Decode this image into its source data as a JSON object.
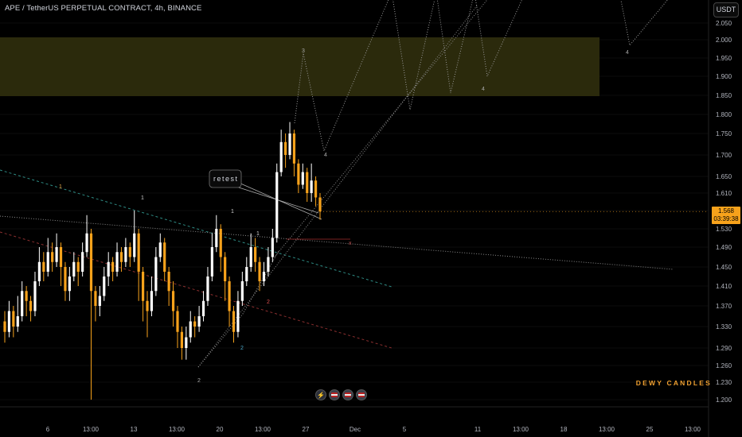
{
  "header": {
    "title": "APE / TetherUS PERPETUAL CONTRACT, 4h, BINANCE"
  },
  "currency_button": "USDT",
  "last_price": {
    "price": "1.568",
    "countdown": "03:39:38",
    "color": "#f7a21b"
  },
  "watermark": "DEWY CANDLES",
  "bottom_icons": [
    "lightning-icon",
    "flag-icon",
    "flag-icon",
    "flag-icon"
  ],
  "colors": {
    "up": "#ffffff",
    "down": "#f7a21b",
    "zone": "#2b2a0c",
    "wave": "#9a9a9a",
    "teal": "#2e8b84",
    "red": "#8b2f2f"
  },
  "chart_data": {
    "type": "candlestick",
    "title": "APE / TetherUS PERPETUAL CONTRACT, 4h, BINANCE",
    "y_axis": {
      "range": [
        1.18,
        2.1
      ],
      "ticks": [
        "2.050",
        "2.000",
        "1.950",
        "1.900",
        "1.850",
        "1.800",
        "1.750",
        "1.700",
        "1.650",
        "1.610",
        "1.570",
        "1.530",
        "1.490",
        "1.450",
        "1.410",
        "1.370",
        "1.330",
        "1.290",
        "1.260",
        "1.230",
        "1.200"
      ]
    },
    "x_axis": {
      "ticks": [
        "6",
        "13:00",
        "13",
        "13:00",
        "20",
        "13:00",
        "27",
        "Dec",
        "5",
        "11",
        "13:00",
        "18",
        "13:00",
        "25",
        "13:00"
      ]
    },
    "resistance_zone": [
      1.85,
      2.0
    ],
    "candles": [
      [
        1.34,
        1.32,
        1.36,
        1.3
      ],
      [
        1.32,
        1.36,
        1.38,
        1.31
      ],
      [
        1.36,
        1.33,
        1.37,
        1.31
      ],
      [
        1.33,
        1.35,
        1.39,
        1.32
      ],
      [
        1.35,
        1.4,
        1.42,
        1.34
      ],
      [
        1.4,
        1.38,
        1.41,
        1.35
      ],
      [
        1.38,
        1.36,
        1.39,
        1.34
      ],
      [
        1.36,
        1.42,
        1.44,
        1.35
      ],
      [
        1.42,
        1.46,
        1.49,
        1.41
      ],
      [
        1.46,
        1.44,
        1.48,
        1.42
      ],
      [
        1.44,
        1.48,
        1.51,
        1.43
      ],
      [
        1.48,
        1.46,
        1.5,
        1.44
      ],
      [
        1.46,
        1.49,
        1.52,
        1.45
      ],
      [
        1.49,
        1.45,
        1.5,
        1.41
      ],
      [
        1.45,
        1.4,
        1.46,
        1.38
      ],
      [
        1.4,
        1.43,
        1.45,
        1.38
      ],
      [
        1.43,
        1.46,
        1.48,
        1.42
      ],
      [
        1.46,
        1.44,
        1.47,
        1.41
      ],
      [
        1.44,
        1.48,
        1.5,
        1.43
      ],
      [
        1.48,
        1.52,
        1.56,
        1.47
      ],
      [
        1.52,
        1.4,
        1.53,
        1.2
      ],
      [
        1.4,
        1.37,
        1.41,
        1.34
      ],
      [
        1.37,
        1.39,
        1.41,
        1.35
      ],
      [
        1.39,
        1.43,
        1.45,
        1.38
      ],
      [
        1.43,
        1.46,
        1.48,
        1.41
      ],
      [
        1.46,
        1.44,
        1.47,
        1.42
      ],
      [
        1.44,
        1.48,
        1.5,
        1.43
      ],
      [
        1.48,
        1.46,
        1.49,
        1.44
      ],
      [
        1.46,
        1.49,
        1.51,
        1.45
      ],
      [
        1.49,
        1.47,
        1.5,
        1.45
      ],
      [
        1.47,
        1.52,
        1.57,
        1.46
      ],
      [
        1.52,
        1.44,
        1.53,
        1.38
      ],
      [
        1.44,
        1.38,
        1.45,
        1.34
      ],
      [
        1.38,
        1.36,
        1.4,
        1.31
      ],
      [
        1.36,
        1.4,
        1.43,
        1.35
      ],
      [
        1.4,
        1.47,
        1.49,
        1.39
      ],
      [
        1.47,
        1.5,
        1.52,
        1.46
      ],
      [
        1.5,
        1.44,
        1.51,
        1.42
      ],
      [
        1.44,
        1.4,
        1.45,
        1.37
      ],
      [
        1.4,
        1.36,
        1.42,
        1.33
      ],
      [
        1.36,
        1.32,
        1.37,
        1.29
      ],
      [
        1.32,
        1.29,
        1.33,
        1.27
      ],
      [
        1.29,
        1.31,
        1.33,
        1.27
      ],
      [
        1.31,
        1.34,
        1.36,
        1.3
      ],
      [
        1.34,
        1.33,
        1.35,
        1.31
      ],
      [
        1.33,
        1.35,
        1.37,
        1.32
      ],
      [
        1.35,
        1.38,
        1.4,
        1.34
      ],
      [
        1.38,
        1.43,
        1.45,
        1.37
      ],
      [
        1.43,
        1.49,
        1.52,
        1.42
      ],
      [
        1.49,
        1.53,
        1.56,
        1.48
      ],
      [
        1.53,
        1.47,
        1.54,
        1.44
      ],
      [
        1.47,
        1.42,
        1.48,
        1.38
      ],
      [
        1.42,
        1.36,
        1.43,
        1.33
      ],
      [
        1.36,
        1.32,
        1.37,
        1.3
      ],
      [
        1.32,
        1.38,
        1.4,
        1.31
      ],
      [
        1.38,
        1.42,
        1.44,
        1.37
      ],
      [
        1.42,
        1.45,
        1.47,
        1.41
      ],
      [
        1.45,
        1.49,
        1.52,
        1.44
      ],
      [
        1.49,
        1.46,
        1.51,
        1.44
      ],
      [
        1.46,
        1.42,
        1.47,
        1.4
      ],
      [
        1.42,
        1.44,
        1.46,
        1.41
      ],
      [
        1.44,
        1.47,
        1.49,
        1.43
      ],
      [
        1.47,
        1.51,
        1.53,
        1.46
      ],
      [
        1.51,
        1.66,
        1.68,
        1.5
      ],
      [
        1.66,
        1.73,
        1.76,
        1.65
      ],
      [
        1.73,
        1.7,
        1.75,
        1.67
      ],
      [
        1.7,
        1.75,
        1.78,
        1.69
      ],
      [
        1.75,
        1.68,
        1.76,
        1.65
      ],
      [
        1.68,
        1.63,
        1.69,
        1.61
      ],
      [
        1.63,
        1.66,
        1.68,
        1.62
      ],
      [
        1.66,
        1.61,
        1.67,
        1.59
      ],
      [
        1.61,
        1.64,
        1.68,
        1.59
      ],
      [
        1.64,
        1.6,
        1.65,
        1.58
      ],
      [
        1.6,
        1.568,
        1.61,
        1.55
      ]
    ],
    "wave_labels": [
      "1",
      "1",
      "1",
      "1",
      "2",
      "2",
      "2",
      "3",
      "4",
      "4",
      "4",
      "x"
    ],
    "annotations": [
      "retest"
    ]
  }
}
